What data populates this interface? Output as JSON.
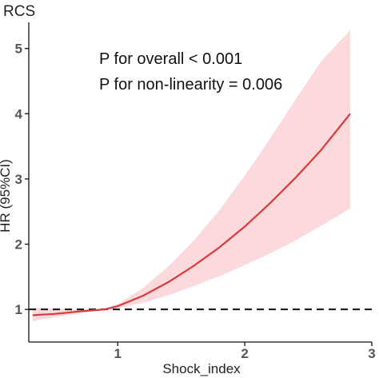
{
  "chart_data": {
    "type": "line",
    "title": "RCS",
    "xlabel": "Shock_index",
    "ylabel": "HR (95%CI)",
    "xlim": [
      0.3,
      3.0
    ],
    "ylim": [
      0.5,
      5.4
    ],
    "xticks": [
      1,
      2,
      3
    ],
    "yticks": [
      1,
      2,
      3,
      4,
      5
    ],
    "grid": false,
    "reference_line": {
      "y": 1,
      "style": "dashed"
    },
    "annotations": [
      "P for overall < 0.001",
      "P for non-linearity = 0.006"
    ],
    "series": [
      {
        "color": "#d93b3b",
        "band_color": "#fbd9dc",
        "x": [
          0.33,
          0.4,
          0.5,
          0.6,
          0.7,
          0.8,
          0.9,
          1.0,
          1.2,
          1.4,
          1.6,
          1.8,
          2.0,
          2.2,
          2.4,
          2.6,
          2.83
        ],
        "y": [
          0.91,
          0.92,
          0.93,
          0.95,
          0.97,
          0.985,
          1.0,
          1.05,
          1.21,
          1.42,
          1.67,
          1.95,
          2.27,
          2.63,
          3.02,
          3.44,
          4.0
        ],
        "lower": [
          0.82,
          0.85,
          0.88,
          0.91,
          0.94,
          0.97,
          0.99,
          1.02,
          1.1,
          1.22,
          1.36,
          1.51,
          1.68,
          1.86,
          2.06,
          2.28,
          2.55
        ],
        "upper": [
          1.03,
          1.02,
          1.01,
          1.0,
          1.0,
          1.0,
          1.02,
          1.08,
          1.33,
          1.66,
          2.06,
          2.52,
          3.05,
          3.62,
          4.22,
          4.8,
          5.28
        ]
      }
    ]
  }
}
